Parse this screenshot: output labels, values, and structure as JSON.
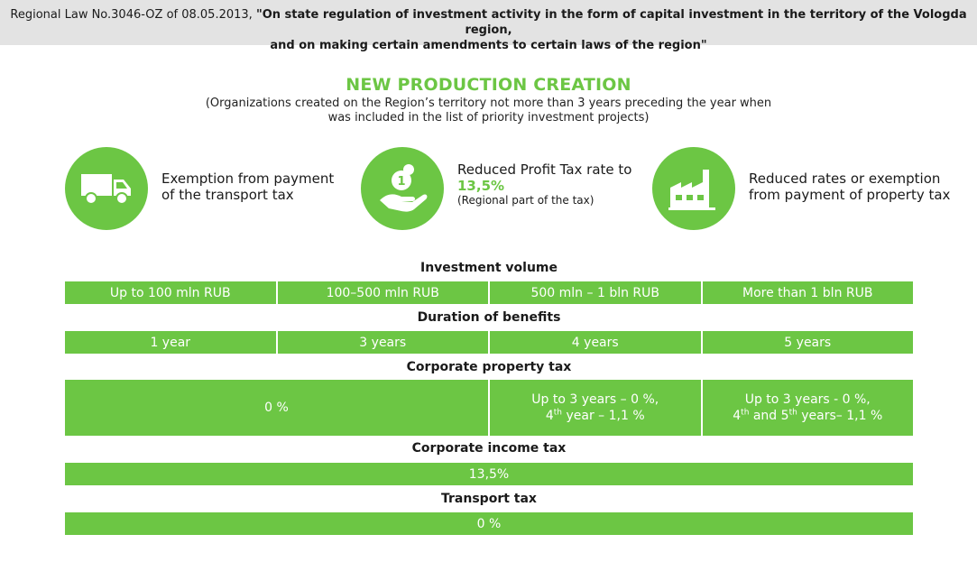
{
  "header": {
    "prefix": "Regional Law  No.3046-OZ of 08.05.2013, ",
    "bold_line1": "\"On state regulation of investment activity in the form of capital investment in the territory of the Vologda region,",
    "bold_line2": "and on making certain amendments to certain laws of the region\""
  },
  "section": {
    "title": "NEW PRODUCTION CREATION",
    "subtitle_line1": "(Organizations created on the Region’s territory not more than 3 years preceding the year when",
    "subtitle_line2": "was included in the list of priority investment projects)"
  },
  "benefits": [
    {
      "icon": "truck-icon",
      "line1": "Exemption from payment",
      "line2": "of the transport tax"
    },
    {
      "icon": "money-hand-icon",
      "line1": "Reduced Profit Tax rate to",
      "rate": "13,5%",
      "note": "(Regional part of the tax)"
    },
    {
      "icon": "factory-icon",
      "line1": "Reduced rates or exemption",
      "line2": "from payment of property tax"
    }
  ],
  "table": {
    "investment_volume": {
      "title": "Investment volume",
      "cells": [
        "Up to 100 mln RUB",
        "100–500 mln RUB",
        "500 mln – 1 bln RUB",
        "More than 1 bln RUB"
      ]
    },
    "duration": {
      "title": "Duration of benefits",
      "cells": [
        "1 year",
        "3 years",
        "4 years",
        "5 years"
      ]
    },
    "property_tax": {
      "title": "Corporate property tax",
      "merged": "0 %",
      "col3_line1": "Up to 3 years – 0 %,",
      "col3_sup": "th",
      "col3_line2a": "4",
      "col3_line2b": " year – 1,1 %",
      "col4_line1": "Up to 3 years - 0 %,",
      "col4_line2a": "4",
      "col4_sup1": "th",
      "col4_line2b": " and 5",
      "col4_sup2": "th",
      "col4_line2c": " years– 1,1 %"
    },
    "income_tax": {
      "title": "Corporate income tax",
      "value": "13,5%"
    },
    "transport_tax": {
      "title": "Transport tax",
      "value": "0 %"
    }
  },
  "colors": {
    "accent": "#6cc644",
    "header_bg": "#e3e3e3"
  }
}
